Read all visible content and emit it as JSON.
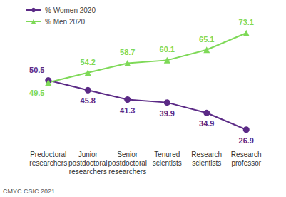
{
  "chart_data": {
    "type": "line",
    "categories": [
      "Predoctoral researchers",
      "Junior postdoctoral researchers",
      "Senior postdoctoral researchers",
      "Tenured scientists",
      "Research scientists",
      "Research professor"
    ],
    "series": [
      {
        "name": "% Women 2020",
        "color": "#5b2a86",
        "marker": "circle",
        "line_style": "solid",
        "values": [
          50.5,
          45.8,
          41.3,
          39.9,
          34.9,
          26.9
        ]
      },
      {
        "name": "% Men 2020",
        "color": "#7ed957",
        "marker": "triangle",
        "line_style": "solid",
        "values": [
          49.5,
          54.2,
          58.7,
          60.1,
          65.1,
          73.1
        ]
      }
    ],
    "ylim": [
      20,
      80
    ],
    "grid": false,
    "legend": "top-left",
    "data_labels": true,
    "tick_labels": "x",
    "annotations": [
      "CMYC CSIC 2021"
    ]
  }
}
